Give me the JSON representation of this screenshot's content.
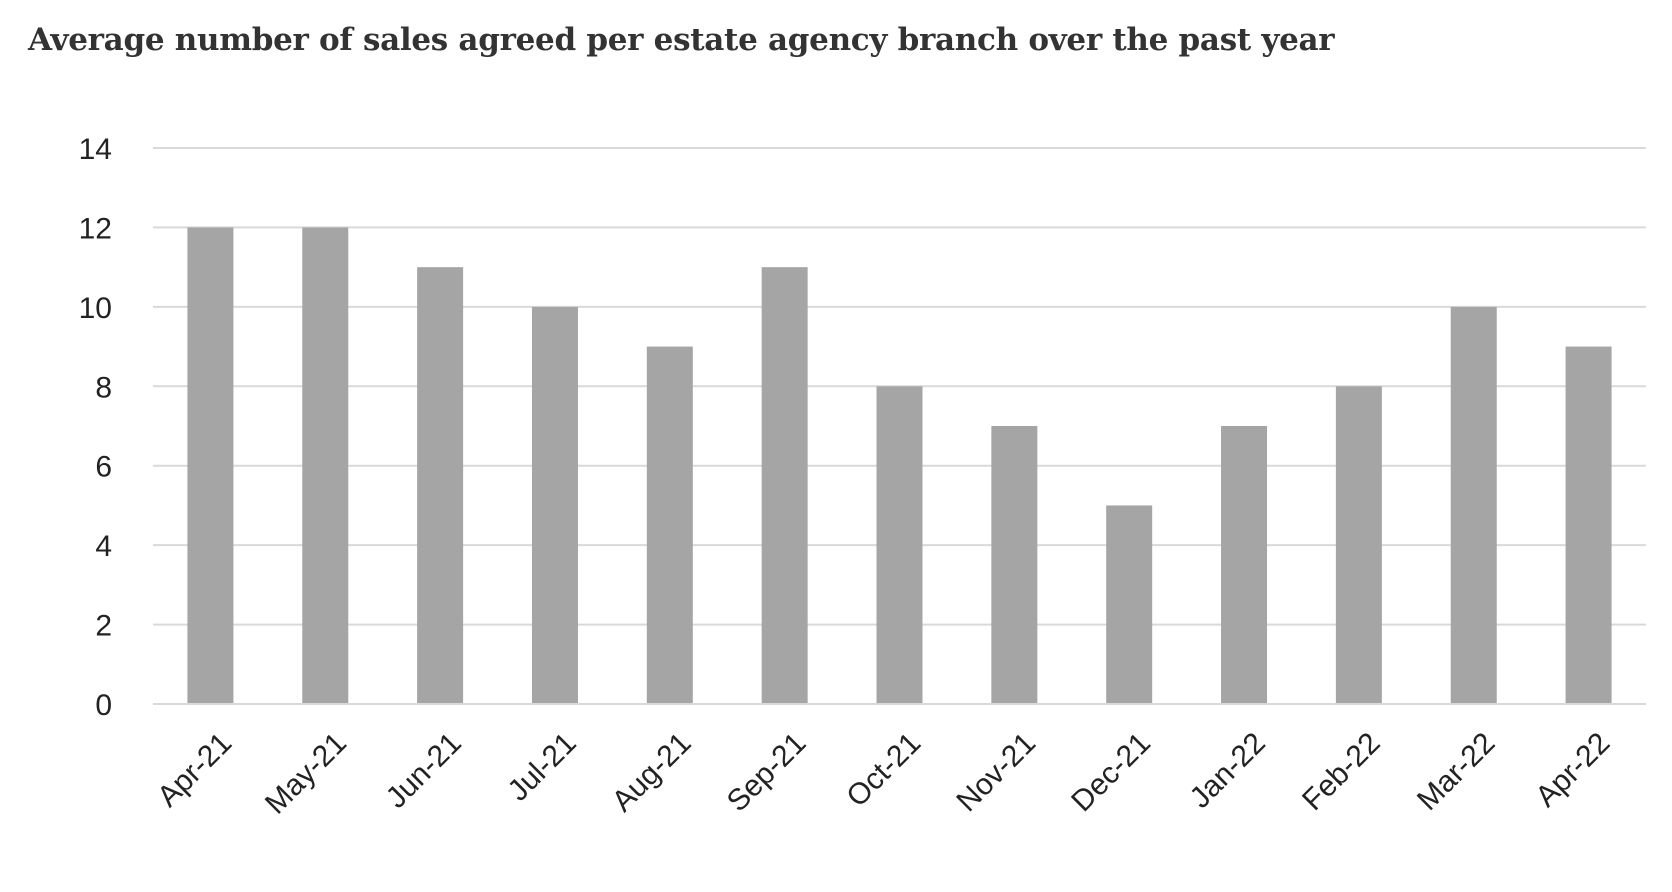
{
  "chart_data": {
    "type": "bar",
    "title": "Average number of sales agreed per estate agency branch over the past year",
    "xlabel": "",
    "ylabel": "",
    "categories": [
      "Apr-21",
      "May-21",
      "Jun-21",
      "Jul-21",
      "Aug-21",
      "Sep-21",
      "Oct-21",
      "Nov-21",
      "Dec-21",
      "Jan-22",
      "Feb-22",
      "Mar-22",
      "Apr-22"
    ],
    "values": [
      12,
      12,
      11,
      10,
      9,
      11,
      8,
      7,
      5,
      7,
      8,
      10,
      9
    ],
    "ylim": [
      0,
      14
    ],
    "yticks": [
      0,
      2,
      4,
      6,
      8,
      10,
      12,
      14
    ],
    "grid": true,
    "legend": "none",
    "colors": {
      "bar": "#a5a5a5",
      "grid": "#d9d9d9"
    }
  }
}
